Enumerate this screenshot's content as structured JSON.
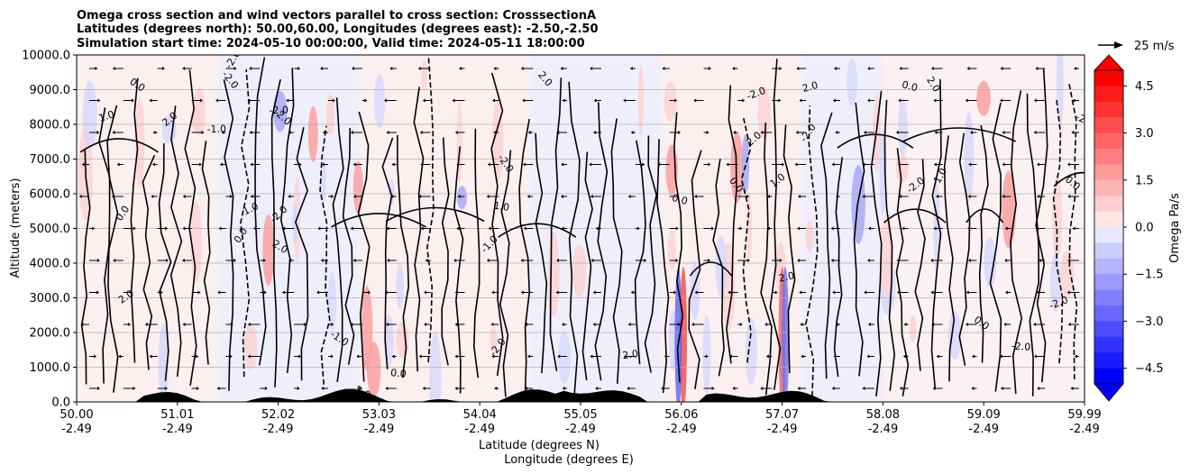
{
  "chart_data": {
    "type": "heatmap",
    "title_lines": [
      "Omega cross section and wind vectors parallel to cross section: CrosssectionA",
      "Latitudes (degrees north): 50.00,60.00, Longitudes (degrees east): -2.50,-2.50",
      "Simulation start time: 2024-05-10 00:00:00, Valid time: 2024-05-11 18:00:00"
    ],
    "ylabel": "Altitude (meters)",
    "xlabel_lat": "Latitude (degrees N)",
    "xlabel_lon": "Longitude (degrees E)",
    "y_ticks": [
      "0.0",
      "1000.0",
      "2000.0",
      "3000.0",
      "4000.0",
      "5000.0",
      "6000.0",
      "7000.0",
      "8000.0",
      "9000.0",
      "10000.0"
    ],
    "ylim": [
      0,
      10000
    ],
    "x_ticks_lat": [
      "50.00",
      "51.01",
      "52.02",
      "53.03",
      "54.04",
      "55.05",
      "56.06",
      "57.07",
      "58.08",
      "59.09",
      "59.99"
    ],
    "x_ticks_lon": [
      "-2.49",
      "-2.49",
      "-2.49",
      "-2.49",
      "-2.49",
      "-2.49",
      "-2.49",
      "-2.49",
      "-2.49",
      "-2.49",
      "-2.49"
    ],
    "xlim": [
      50.0,
      59.99
    ],
    "grid": "horizontal",
    "colorbar": {
      "label": "Omega Pa/s",
      "ticks": [
        "4.5",
        "3.0",
        "1.5",
        "0.0",
        "−1.5",
        "−3.0",
        "−4.5"
      ],
      "range": [
        -5,
        5
      ],
      "colormap": "bwr",
      "color_max": "#ff0000",
      "color_min": "#0000ff",
      "extend": "both"
    },
    "contour_labels": [
      "0.0",
      "-1.0",
      "1.0",
      "-2.0",
      "2.0"
    ],
    "quiver_key": "25 m/s",
    "terrain_color": "#000000",
    "grid_color": "#b0b0b0"
  }
}
